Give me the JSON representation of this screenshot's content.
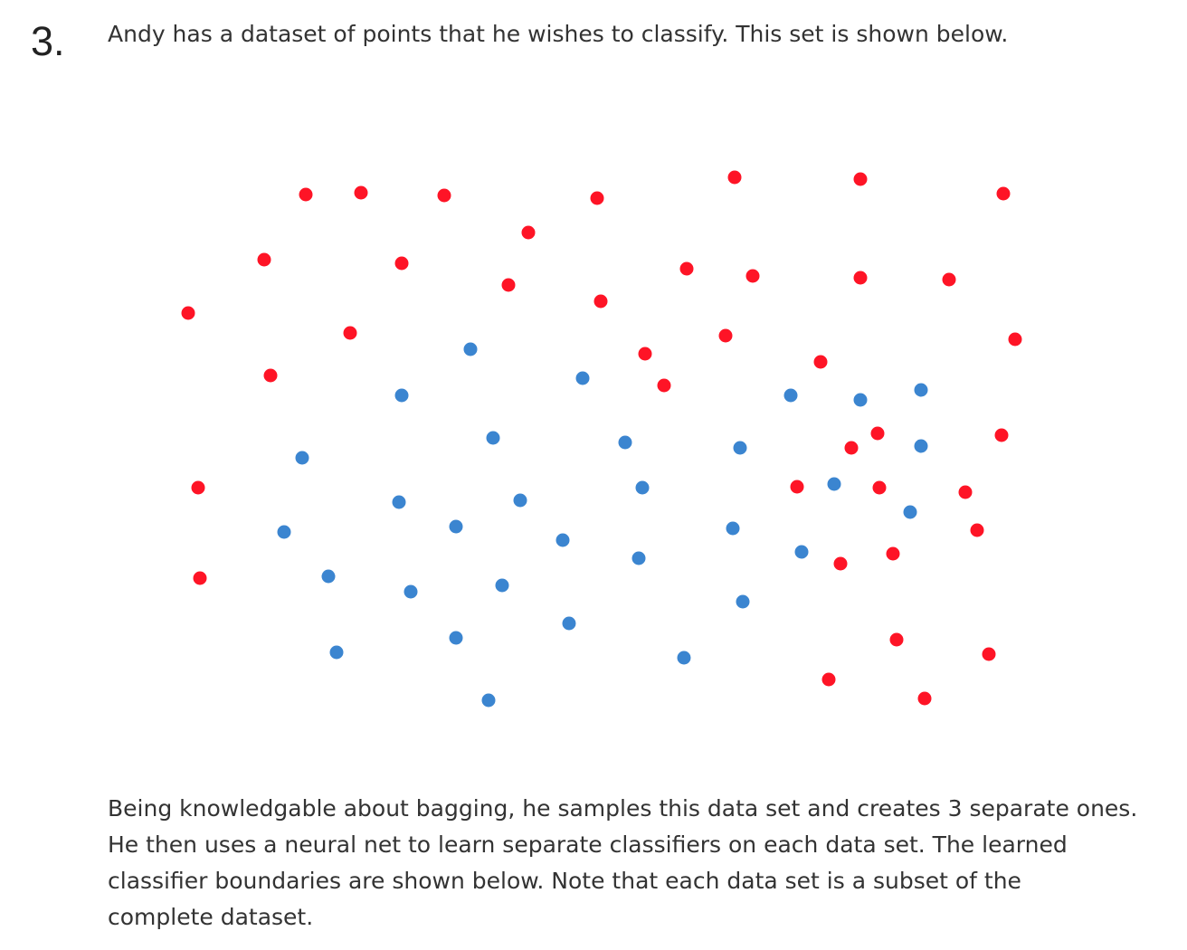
{
  "question": {
    "number": "3.",
    "intro": "Andy has a dataset of points that he wishes to classify. This set is shown below.",
    "body_lines": [
      "Being knowledgable about bagging, he samples this data set and creates 3 separate ones.",
      "He then uses a neural net to learn separate classifiers on each data set. The learned",
      "classifier boundaries are shown below. Note that each data set is a subset of the",
      "complete dataset."
    ]
  },
  "chart_data": {
    "type": "scatter",
    "title": "",
    "xlabel": "",
    "ylabel": "",
    "axes_visible": false,
    "grid": false,
    "legend": "none",
    "series": [
      {
        "color": "#fe1426",
        "points": [
          [
            338,
            215
          ],
          [
            399,
            213
          ],
          [
            491,
            216
          ],
          [
            660,
            219
          ],
          [
            812,
            196
          ],
          [
            951,
            198
          ],
          [
            1109,
            214
          ],
          [
            584,
            257
          ],
          [
            292,
            287
          ],
          [
            444,
            291
          ],
          [
            562,
            315
          ],
          [
            759,
            297
          ],
          [
            832,
            305
          ],
          [
            951,
            307
          ],
          [
            1049,
            309
          ],
          [
            208,
            346
          ],
          [
            664,
            333
          ],
          [
            387,
            368
          ],
          [
            802,
            371
          ],
          [
            1122,
            375
          ],
          [
            713,
            391
          ],
          [
            907,
            400
          ],
          [
            299,
            415
          ],
          [
            734,
            426
          ],
          [
            970,
            479
          ],
          [
            941,
            495
          ],
          [
            1107,
            481
          ],
          [
            219,
            539
          ],
          [
            881,
            538
          ],
          [
            972,
            539
          ],
          [
            1067,
            544
          ],
          [
            1080,
            586
          ],
          [
            987,
            612
          ],
          [
            929,
            623
          ],
          [
            221,
            639
          ],
          [
            991,
            707
          ],
          [
            1093,
            723
          ],
          [
            916,
            751
          ],
          [
            1022,
            772
          ]
        ]
      },
      {
        "color": "#3b85d0",
        "points": [
          [
            520,
            386
          ],
          [
            644,
            418
          ],
          [
            444,
            437
          ],
          [
            874,
            437
          ],
          [
            951,
            442
          ],
          [
            1018,
            431
          ],
          [
            545,
            484
          ],
          [
            691,
            489
          ],
          [
            818,
            495
          ],
          [
            1018,
            493
          ],
          [
            334,
            506
          ],
          [
            710,
            539
          ],
          [
            922,
            535
          ],
          [
            441,
            555
          ],
          [
            575,
            553
          ],
          [
            1006,
            566
          ],
          [
            314,
            588
          ],
          [
            504,
            582
          ],
          [
            622,
            597
          ],
          [
            810,
            584
          ],
          [
            706,
            617
          ],
          [
            886,
            610
          ],
          [
            363,
            637
          ],
          [
            555,
            647
          ],
          [
            454,
            654
          ],
          [
            821,
            665
          ],
          [
            629,
            689
          ],
          [
            504,
            705
          ],
          [
            372,
            721
          ],
          [
            756,
            727
          ],
          [
            540,
            774
          ]
        ]
      }
    ]
  }
}
